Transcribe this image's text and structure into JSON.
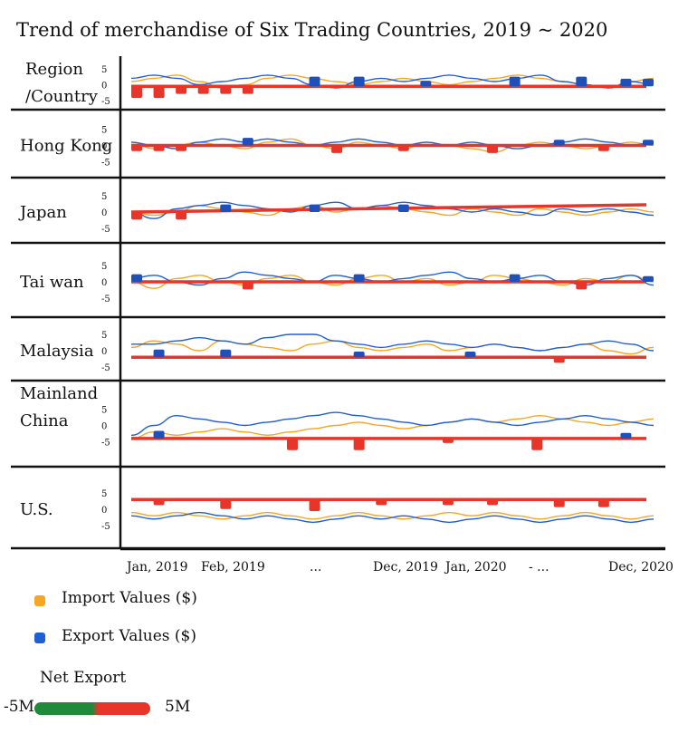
{
  "chart_data": {
    "type": "line",
    "title": "Trend of merchandise of Six Trading Countries, 2019 ~ 2020",
    "row_header": [
      "Region",
      "/Country"
    ],
    "y_ticks": [
      "5",
      "0",
      "-5"
    ],
    "ylim": [
      -5,
      5
    ],
    "x_tick_labels": [
      "Jan, 2019",
      "Feb, 2019",
      "...",
      "Dec, 2019",
      "Jan, 2020",
      "- ...",
      "Dec, 2020"
    ],
    "legend": {
      "import_label": "Import Values ($)",
      "export_label": "Export Values ($)",
      "net_title": "Net Export",
      "net_min_label": "-5M",
      "net_max_label": "5M"
    },
    "colors": {
      "import": "#f5a623",
      "export": "#1f5fd6",
      "net_line": "#e8352a",
      "negative_mark": "#e8352a",
      "positive_mark": "#1f4fb8",
      "net_low": "#1f8a3a",
      "net_high": "#e8352a"
    },
    "rows": [
      {
        "name": "Region/Country summary",
        "label_lines": [],
        "net_level": -0.5,
        "import": [
          1,
          2,
          3,
          1,
          -1,
          0,
          2,
          3,
          2,
          1,
          0,
          1,
          2,
          1,
          0,
          1,
          2,
          3,
          2,
          1,
          0,
          -1,
          1,
          2
        ],
        "export": [
          2,
          3,
          2,
          0,
          1,
          2,
          3,
          2,
          0,
          -1,
          1,
          2,
          1,
          2,
          3,
          2,
          1,
          2,
          3,
          1,
          0,
          -1,
          1,
          0
        ],
        "marks": [
          [
            1,
            -4
          ],
          [
            2,
            -4
          ],
          [
            3,
            -2
          ],
          [
            4,
            -2
          ],
          [
            5,
            -2
          ],
          [
            6,
            -2
          ],
          [
            9,
            3
          ],
          [
            11,
            3
          ],
          [
            14,
            1
          ],
          [
            18,
            3
          ],
          [
            21,
            3
          ],
          [
            23,
            2
          ],
          [
            24,
            2
          ]
        ]
      },
      {
        "name": "Hong Kong",
        "label_lines": [
          "Hong Kong"
        ],
        "net_level": 0,
        "import": [
          1,
          -1,
          0,
          1,
          0,
          -1,
          1,
          2,
          0,
          -1,
          1,
          0,
          -1,
          1,
          0,
          -1,
          -2,
          0,
          1,
          0,
          -1,
          0,
          1,
          0
        ],
        "export": [
          1,
          0,
          -1,
          1,
          2,
          1,
          2,
          1,
          0,
          1,
          2,
          1,
          0,
          1,
          0,
          1,
          0,
          -1,
          0,
          1,
          2,
          1,
          0,
          1
        ],
        "marks": [
          [
            1,
            -1
          ],
          [
            2,
            -1
          ],
          [
            3,
            -1
          ],
          [
            6,
            2
          ],
          [
            10,
            -2
          ],
          [
            13,
            -1
          ],
          [
            17,
            -2
          ],
          [
            20,
            1
          ],
          [
            22,
            -1
          ],
          [
            24,
            1
          ]
        ]
      },
      {
        "name": "Japan",
        "label_lines": [
          "Japan"
        ],
        "net_level": 0,
        "import": [
          0,
          -1,
          0,
          2,
          1,
          0,
          -1,
          1,
          2,
          0,
          1,
          2,
          1,
          0,
          -1,
          1,
          0,
          -1,
          1,
          0,
          -1,
          0,
          1,
          0
        ],
        "export": [
          0,
          -2,
          1,
          2,
          3,
          2,
          1,
          0,
          2,
          3,
          1,
          2,
          3,
          2,
          1,
          0,
          1,
          0,
          -1,
          1,
          0,
          1,
          0,
          -1
        ],
        "marks": [
          [
            1,
            -2
          ],
          [
            3,
            -2
          ],
          [
            5,
            2
          ],
          [
            9,
            2
          ],
          [
            13,
            2
          ]
        ]
      },
      {
        "name": "Taiwan",
        "label_lines": [
          "Tai wan"
        ],
        "net_level": 0,
        "import": [
          0,
          -2,
          1,
          2,
          0,
          -1,
          1,
          2,
          0,
          -1,
          1,
          2,
          0,
          1,
          -1,
          0,
          2,
          1,
          0,
          -1,
          1,
          0,
          2,
          0
        ],
        "export": [
          1,
          2,
          0,
          -1,
          1,
          3,
          2,
          1,
          0,
          2,
          1,
          0,
          1,
          2,
          3,
          1,
          0,
          1,
          2,
          0,
          -1,
          1,
          2,
          -1
        ],
        "marks": [
          [
            1,
            2
          ],
          [
            6,
            -2
          ],
          [
            11,
            2
          ],
          [
            18,
            2
          ],
          [
            21,
            -2
          ],
          [
            24,
            1
          ]
        ]
      },
      {
        "name": "Malaysia",
        "label_lines": [
          "Malaysia"
        ],
        "net_level": -2,
        "import": [
          1,
          3,
          2,
          0,
          3,
          2,
          1,
          0,
          2,
          3,
          1,
          0,
          1,
          2,
          0,
          1,
          2,
          1,
          0,
          1,
          2,
          0,
          -1,
          1
        ],
        "export": [
          2,
          2,
          3,
          4,
          3,
          2,
          4,
          5,
          5,
          3,
          2,
          1,
          2,
          3,
          2,
          1,
          2,
          1,
          0,
          1,
          2,
          3,
          2,
          0
        ],
        "marks": [
          [
            2,
            2
          ],
          [
            5,
            2
          ],
          [
            11,
            1
          ],
          [
            16,
            1
          ],
          [
            20,
            -1
          ]
        ]
      },
      {
        "name": "Mainland China",
        "label_lines": [
          "Mainland",
          "China"
        ],
        "net_level": -4,
        "import": [
          -4,
          -2,
          -3,
          -2,
          -1,
          -2,
          -3,
          -2,
          -1,
          0,
          1,
          0,
          -1,
          0,
          1,
          2,
          1,
          2,
          3,
          2,
          1,
          0,
          1,
          2
        ],
        "export": [
          -3,
          0,
          3,
          2,
          1,
          0,
          1,
          2,
          3,
          4,
          3,
          2,
          1,
          0,
          1,
          2,
          1,
          0,
          1,
          2,
          3,
          2,
          1,
          0
        ],
        "marks": [
          [
            2,
            2
          ],
          [
            8,
            -4
          ],
          [
            11,
            -4
          ],
          [
            15,
            0
          ],
          [
            19,
            -4
          ],
          [
            23,
            1
          ]
        ]
      },
      {
        "name": "U.S.",
        "label_lines": [
          "U.S."
        ],
        "net_level": 3,
        "import": [
          -1,
          -2,
          -1,
          -2,
          -3,
          -2,
          -1,
          -2,
          -3,
          -2,
          -1,
          -2,
          -3,
          -2,
          -1,
          -2,
          -1,
          -2,
          -3,
          -2,
          -1,
          -2,
          -3,
          -2
        ],
        "export": [
          -2,
          -3,
          -2,
          -1,
          -2,
          -3,
          -2,
          -3,
          -4,
          -3,
          -2,
          -3,
          -2,
          -3,
          -4,
          -3,
          -2,
          -3,
          -4,
          -3,
          -2,
          -3,
          -4,
          -3
        ],
        "marks": [
          [
            2,
            -1
          ],
          [
            5,
            -3
          ],
          [
            9,
            -4
          ],
          [
            12,
            -1
          ],
          [
            15,
            -1
          ],
          [
            17,
            -1
          ],
          [
            20,
            -2
          ],
          [
            22,
            -2
          ]
        ]
      }
    ]
  }
}
